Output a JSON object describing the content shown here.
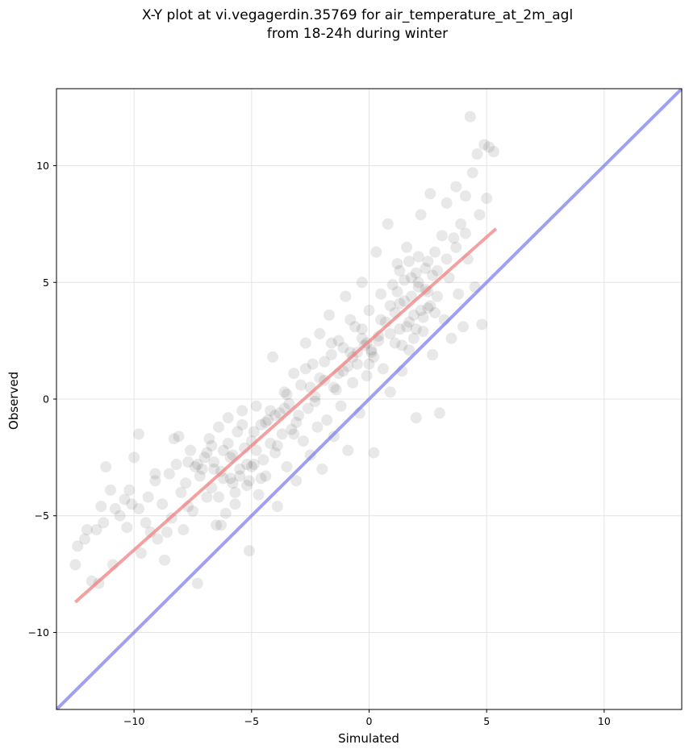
{
  "chart_data": {
    "type": "scatter",
    "title_line1": "X-Y plot at vi.vegagerdin.35769 for air_temperature_at_2m_agl",
    "title_line2": "from 18-24h during winter",
    "xlabel": "Simulated",
    "ylabel": "Observed",
    "xlim": [
      -13.3,
      13.3
    ],
    "ylim": [
      -13.3,
      13.3
    ],
    "xticks": [
      -10,
      -5,
      0,
      5,
      10
    ],
    "yticks": [
      -10,
      -5,
      0,
      5,
      10
    ],
    "xtick_labels": [
      "−10",
      "−5",
      "0",
      "5",
      "10"
    ],
    "ytick_labels": [
      "−10",
      "−5",
      "0",
      "5",
      "10"
    ],
    "grid": true,
    "colors": {
      "points": "#000000",
      "fit_line": "#f08080",
      "identity_line": "#7777ee",
      "grid": "#e4e4e4"
    },
    "identity_line": {
      "x": [
        -13.3,
        13.3
      ],
      "y": [
        -13.3,
        13.3
      ]
    },
    "fit_line": {
      "x": [
        -12.5,
        5.4
      ],
      "y": [
        -8.7,
        7.3
      ]
    },
    "points": [
      [
        -12.5,
        -7.1
      ],
      [
        -12.4,
        -6.3
      ],
      [
        -12.1,
        -6.0
      ],
      [
        -12.0,
        -5.6
      ],
      [
        -11.8,
        -7.8
      ],
      [
        -11.6,
        -5.6
      ],
      [
        -11.5,
        -7.9
      ],
      [
        -11.4,
        -4.6
      ],
      [
        -11.3,
        -5.3
      ],
      [
        -11.2,
        -2.9
      ],
      [
        -11.0,
        -3.9
      ],
      [
        -10.9,
        -7.1
      ],
      [
        -10.8,
        -4.7
      ],
      [
        -10.6,
        -5.0
      ],
      [
        -10.4,
        -4.3
      ],
      [
        -10.3,
        -5.5
      ],
      [
        -10.2,
        -3.9
      ],
      [
        -10.1,
        -4.5
      ],
      [
        -10.0,
        -2.5
      ],
      [
        -9.8,
        -1.5
      ],
      [
        -9.7,
        -6.6
      ],
      [
        -9.5,
        -5.3
      ],
      [
        -9.4,
        -4.2
      ],
      [
        -9.3,
        -5.7
      ],
      [
        -9.1,
        -3.5
      ],
      [
        -9.0,
        -6.0
      ],
      [
        -8.8,
        -4.5
      ],
      [
        -8.7,
        -6.9
      ],
      [
        -8.5,
        -3.2
      ],
      [
        -8.4,
        -5.1
      ],
      [
        -8.3,
        -1.7
      ],
      [
        -8.2,
        -2.8
      ],
      [
        -8.0,
        -4.0
      ],
      [
        -7.9,
        -5.6
      ],
      [
        -7.8,
        -3.6
      ],
      [
        -7.6,
        -2.2
      ],
      [
        -7.5,
        -4.8
      ],
      [
        -7.4,
        -2.9
      ],
      [
        -7.3,
        -7.9
      ],
      [
        -7.2,
        -3.3
      ],
      [
        -7.0,
        -2.5
      ],
      [
        -6.9,
        -4.2
      ],
      [
        -6.8,
        -1.7
      ],
      [
        -6.7,
        -3.8
      ],
      [
        -6.6,
        -2.7
      ],
      [
        -6.5,
        -5.4
      ],
      [
        -6.4,
        -1.2
      ],
      [
        -6.3,
        -3.1
      ],
      [
        -6.2,
        -2.2
      ],
      [
        -6.1,
        -4.9
      ],
      [
        -6.0,
        -0.8
      ],
      [
        -5.9,
        -3.4
      ],
      [
        -5.8,
        -2.4
      ],
      [
        -5.7,
        -4.5
      ],
      [
        -5.6,
        -1.4
      ],
      [
        -5.5,
        -3.0
      ],
      [
        -5.4,
        -0.5
      ],
      [
        -5.3,
        -2.1
      ],
      [
        -5.2,
        -3.7
      ],
      [
        -5.1,
        -6.5
      ],
      [
        -5.0,
        -1.8
      ],
      [
        -4.9,
        -2.8
      ],
      [
        -4.8,
        -0.3
      ],
      [
        -4.7,
        -4.1
      ],
      [
        -4.6,
        -1.1
      ],
      [
        -4.5,
        -2.6
      ],
      [
        -4.4,
        -3.3
      ],
      [
        -4.3,
        -0.9
      ],
      [
        -4.2,
        -1.9
      ],
      [
        -4.1,
        1.8
      ],
      [
        -4.0,
        -2.3
      ],
      [
        -3.9,
        -4.6
      ],
      [
        -3.8,
        -0.6
      ],
      [
        -3.7,
        -1.5
      ],
      [
        -3.6,
        0.3
      ],
      [
        -3.5,
        -2.9
      ],
      [
        -3.4,
        -0.2
      ],
      [
        -3.3,
        -1.3
      ],
      [
        -3.2,
        1.1
      ],
      [
        -3.1,
        -3.5
      ],
      [
        -3.0,
        -0.7
      ],
      [
        -2.9,
        0.6
      ],
      [
        -2.8,
        -1.8
      ],
      [
        -2.7,
        2.4
      ],
      [
        -2.6,
        -0.4
      ],
      [
        -2.5,
        -2.4
      ],
      [
        -2.4,
        1.5
      ],
      [
        -2.3,
        0.1
      ],
      [
        -2.2,
        -1.2
      ],
      [
        -2.1,
        2.8
      ],
      [
        -2.0,
        -3.0
      ],
      [
        -1.9,
        0.8
      ],
      [
        -1.8,
        -0.9
      ],
      [
        -1.7,
        3.6
      ],
      [
        -1.6,
        1.9
      ],
      [
        -1.5,
        -1.6
      ],
      [
        -1.4,
        0.4
      ],
      [
        -1.3,
        2.5
      ],
      [
        -1.2,
        -0.3
      ],
      [
        -1.1,
        1.2
      ],
      [
        -1.0,
        4.4
      ],
      [
        -0.9,
        -2.2
      ],
      [
        -0.8,
        2.0
      ],
      [
        -0.7,
        0.7
      ],
      [
        -0.6,
        3.1
      ],
      [
        -0.5,
        1.5
      ],
      [
        -0.4,
        -0.6
      ],
      [
        -0.3,
        5.0
      ],
      [
        -0.2,
        2.3
      ],
      [
        -0.1,
        1.0
      ],
      [
        0.0,
        3.8
      ],
      [
        0.1,
        2.0
      ],
      [
        0.2,
        -2.3
      ],
      [
        0.3,
        6.3
      ],
      [
        0.4,
        2.7
      ],
      [
        0.5,
        4.5
      ],
      [
        0.6,
        1.3
      ],
      [
        0.7,
        3.3
      ],
      [
        0.8,
        7.5
      ],
      [
        0.9,
        0.3
      ],
      [
        1.0,
        4.9
      ],
      [
        1.1,
        2.4
      ],
      [
        1.2,
        5.8
      ],
      [
        1.3,
        3.0
      ],
      [
        1.4,
        1.2
      ],
      [
        1.5,
        4.2
      ],
      [
        1.6,
        6.5
      ],
      [
        1.7,
        2.1
      ],
      [
        1.8,
        5.2
      ],
      [
        1.9,
        3.6
      ],
      [
        2.0,
        -0.8
      ],
      [
        2.1,
        4.8
      ],
      [
        2.2,
        7.9
      ],
      [
        2.3,
        2.9
      ],
      [
        2.4,
        5.6
      ],
      [
        2.5,
        3.9
      ],
      [
        2.6,
        8.8
      ],
      [
        2.7,
        1.9
      ],
      [
        2.8,
        6.3
      ],
      [
        2.9,
        4.4
      ],
      [
        3.0,
        -0.6
      ],
      [
        3.1,
        7.0
      ],
      [
        3.2,
        3.4
      ],
      [
        3.3,
        8.4
      ],
      [
        3.4,
        5.2
      ],
      [
        3.5,
        2.6
      ],
      [
        3.6,
        6.9
      ],
      [
        3.7,
        9.1
      ],
      [
        3.8,
        4.5
      ],
      [
        3.9,
        7.5
      ],
      [
        4.0,
        3.1
      ],
      [
        4.1,
        8.7
      ],
      [
        4.2,
        6.0
      ],
      [
        4.3,
        12.1
      ],
      [
        4.4,
        9.7
      ],
      [
        4.5,
        4.8
      ],
      [
        4.6,
        10.5
      ],
      [
        4.7,
        7.9
      ],
      [
        4.8,
        3.2
      ],
      [
        4.9,
        10.9
      ],
      [
        5.0,
        8.6
      ],
      [
        5.1,
        10.8
      ],
      [
        5.3,
        10.6
      ],
      [
        -9.8,
        -4.7
      ],
      [
        -9.1,
        -3.2
      ],
      [
        -8.6,
        -5.7
      ],
      [
        -8.1,
        -1.6
      ],
      [
        -7.7,
        -4.6
      ],
      [
        -7.1,
        -3.0
      ],
      [
        -6.7,
        -2.0
      ],
      [
        -6.3,
        -5.4
      ],
      [
        -5.8,
        -3.6
      ],
      [
        -5.4,
        -1.1
      ],
      [
        -5.0,
        -2.9
      ],
      [
        -4.6,
        -3.4
      ],
      [
        -4.2,
        -0.5
      ],
      [
        -3.9,
        -2.0
      ],
      [
        -3.5,
        0.2
      ],
      [
        -3.1,
        -1.0
      ],
      [
        -2.7,
        1.3
      ],
      [
        -2.3,
        -0.1
      ],
      [
        -1.9,
        1.6
      ],
      [
        -1.5,
        0.5
      ],
      [
        -1.1,
        2.2
      ],
      [
        -0.7,
        1.8
      ],
      [
        -0.3,
        2.6
      ],
      [
        0.1,
        2.1
      ],
      [
        0.5,
        3.4
      ],
      [
        0.9,
        2.8
      ],
      [
        1.3,
        4.1
      ],
      [
        1.7,
        3.3
      ],
      [
        2.1,
        5.0
      ],
      [
        2.5,
        4.6
      ],
      [
        2.9,
        5.5
      ],
      [
        3.3,
        6.0
      ],
      [
        3.7,
        6.5
      ],
      [
        4.1,
        7.1
      ],
      [
        1.5,
        5.1
      ],
      [
        1.8,
        4.4
      ],
      [
        2.0,
        5.4
      ],
      [
        2.2,
        3.8
      ],
      [
        2.4,
        4.7
      ],
      [
        1.6,
        3.1
      ],
      [
        1.9,
        2.6
      ],
      [
        2.3,
        3.5
      ],
      [
        1.2,
        4.6
      ],
      [
        2.7,
        5.3
      ],
      [
        1.1,
        3.7
      ],
      [
        2.1,
        6.1
      ],
      [
        1.4,
        2.3
      ],
      [
        2.6,
        4.0
      ],
      [
        1.7,
        5.9
      ],
      [
        2.0,
        3.0
      ],
      [
        0.9,
        4.0
      ],
      [
        2.8,
        3.7
      ],
      [
        1.3,
        5.5
      ],
      [
        2.5,
        5.9
      ],
      [
        -6.6,
        -3.0
      ],
      [
        -6.2,
        -3.4
      ],
      [
        -5.9,
        -2.5
      ],
      [
        -5.5,
        -3.3
      ],
      [
        -5.2,
        -2.8
      ],
      [
        -6.9,
        -2.3
      ],
      [
        -5.7,
        -4.0
      ],
      [
        -6.4,
        -4.2
      ],
      [
        -7.3,
        -2.8
      ],
      [
        -5.1,
        -3.5
      ],
      [
        -4.8,
        -2.2
      ],
      [
        -4.4,
        -1.0
      ],
      [
        -4.0,
        -0.7
      ],
      [
        -3.6,
        -0.4
      ],
      [
        -3.2,
        -1.5
      ],
      [
        -7.7,
        -2.7
      ],
      [
        -6.0,
        -1.9
      ],
      [
        -4.9,
        -1.4
      ],
      [
        -0.5,
        2.0
      ],
      [
        -0.1,
        2.4
      ],
      [
        0.2,
        1.8
      ],
      [
        -0.9,
        1.4
      ],
      [
        -1.3,
        1.1
      ],
      [
        -0.3,
        3.0
      ],
      [
        -2.1,
        0.9
      ],
      [
        0.0,
        1.5
      ],
      [
        -1.6,
        2.4
      ],
      [
        -0.8,
        3.4
      ],
      [
        0.4,
        2.5
      ],
      [
        -2.5,
        0.5
      ]
    ]
  }
}
